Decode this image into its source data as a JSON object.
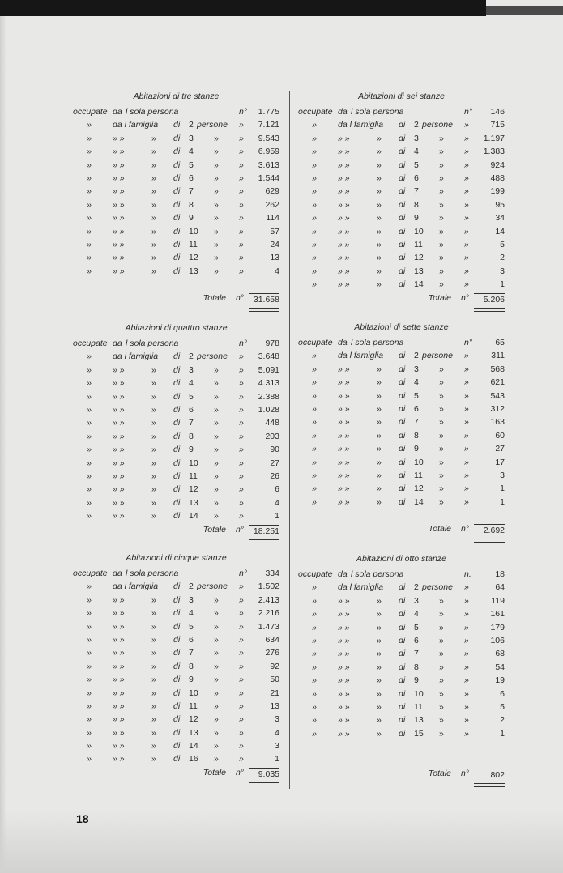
{
  "page_number": "18",
  "blocks": [
    {
      "title": "Abitazioni di tre stanze",
      "total_label": "Totale",
      "total_unit": "n°",
      "total": "31.658",
      "rows": [
        [
          "occupate",
          "da",
          "l sola persona",
          "",
          "",
          "",
          "",
          "n°",
          "1.775"
        ],
        [
          "»",
          "",
          "da l famiglia",
          "",
          "di",
          "2",
          "persone",
          "»",
          "7.121"
        ],
        [
          "»",
          "» »",
          "",
          "»",
          "di",
          "3",
          "»",
          "»",
          "9.543"
        ],
        [
          "»",
          "» »",
          "",
          "»",
          "di",
          "4",
          "»",
          "»",
          "6.959"
        ],
        [
          "»",
          "» »",
          "",
          "»",
          "di",
          "5",
          "»",
          "»",
          "3.613"
        ],
        [
          "»",
          "» »",
          "",
          "»",
          "di",
          "6",
          "»",
          "»",
          "1.544"
        ],
        [
          "»",
          "» »",
          "",
          "»",
          "di",
          "7",
          "»",
          "»",
          "629"
        ],
        [
          "»",
          "» »",
          "",
          "»",
          "di",
          "8",
          "»",
          "»",
          "262"
        ],
        [
          "»",
          "» »",
          "",
          "»",
          "di",
          "9",
          "»",
          "»",
          "114"
        ],
        [
          "»",
          "» »",
          "",
          "»",
          "di",
          "10",
          "»",
          "»",
          "57"
        ],
        [
          "»",
          "» »",
          "",
          "»",
          "di",
          "11",
          "»",
          "»",
          "24"
        ],
        [
          "»",
          "» »",
          "",
          "»",
          "di",
          "12",
          "»",
          "»",
          "13"
        ],
        [
          "»",
          "» »",
          "",
          "»",
          "di",
          "13",
          "»",
          "»",
          "4"
        ]
      ]
    },
    {
      "title": "Abitazioni di sei stanze",
      "total_label": "Totale",
      "total_unit": "n°",
      "total": "5.206",
      "rows": [
        [
          "occupate",
          "da",
          "l sola persona",
          "",
          "",
          "",
          "",
          "n°",
          "146"
        ],
        [
          "»",
          "",
          "da l famiglia",
          "",
          "di",
          "2",
          "persone",
          "»",
          "715"
        ],
        [
          "»",
          "» »",
          "",
          "»",
          "di",
          "3",
          "»",
          "»",
          "1.197"
        ],
        [
          "»",
          "» »",
          "",
          "»",
          "di",
          "4",
          "»",
          "»",
          "1.383"
        ],
        [
          "»",
          "» »",
          "",
          "»",
          "di",
          "5",
          "»",
          "»",
          "924"
        ],
        [
          "»",
          "» »",
          "",
          "»",
          "di",
          "6",
          "»",
          "»",
          "488"
        ],
        [
          "»",
          "» »",
          "",
          "»",
          "di",
          "7",
          "»",
          "»",
          "199"
        ],
        [
          "»",
          "» »",
          "",
          "»",
          "di",
          "8",
          "»",
          "»",
          "95"
        ],
        [
          "»",
          "» »",
          "",
          "»",
          "di",
          "9",
          "»",
          "»",
          "34"
        ],
        [
          "»",
          "» »",
          "",
          "»",
          "di",
          "10",
          "»",
          "»",
          "14"
        ],
        [
          "»",
          "» »",
          "",
          "»",
          "di",
          "11",
          "»",
          "»",
          "5"
        ],
        [
          "»",
          "» »",
          "",
          "»",
          "di",
          "12",
          "»",
          "»",
          "2"
        ],
        [
          "»",
          "» »",
          "",
          "»",
          "di",
          "13",
          "»",
          "»",
          "3"
        ],
        [
          "»",
          "» »",
          "",
          "»",
          "di",
          "14",
          "»",
          "»",
          "1"
        ]
      ]
    },
    {
      "title": "Abitazioni di quattro stanze",
      "total_label": "Totale",
      "total_unit": "n°",
      "total": "18.251",
      "rows": [
        [
          "occupate",
          "da",
          "l sola persona",
          "",
          "",
          "",
          "",
          "n°",
          "978"
        ],
        [
          "»",
          "",
          "da l famiglia",
          "",
          "di",
          "2",
          "persone",
          "»",
          "3.648"
        ],
        [
          "»",
          "» »",
          "",
          "»",
          "di",
          "3",
          "»",
          "»",
          "5.091"
        ],
        [
          "»",
          "» »",
          "",
          "»",
          "di",
          "4",
          "»",
          "»",
          "4.313"
        ],
        [
          "»",
          "» »",
          "",
          "»",
          "di",
          "5",
          "»",
          "»",
          "2.388"
        ],
        [
          "»",
          "» »",
          "",
          "»",
          "di",
          "6",
          "»",
          "»",
          "1.028"
        ],
        [
          "»",
          "» »",
          "",
          "»",
          "di",
          "7",
          "»",
          "»",
          "448"
        ],
        [
          "»",
          "» »",
          "",
          "»",
          "di",
          "8",
          "»",
          "»",
          "203"
        ],
        [
          "»",
          "» »",
          "",
          "»",
          "di",
          "9",
          "»",
          "»",
          "90"
        ],
        [
          "»",
          "» »",
          "",
          "»",
          "di",
          "10",
          "»",
          "»",
          "27"
        ],
        [
          "»",
          "» »",
          "",
          "»",
          "di",
          "11",
          "»",
          "»",
          "26"
        ],
        [
          "»",
          "» »",
          "",
          "»",
          "di",
          "12",
          "»",
          "»",
          "6"
        ],
        [
          "»",
          "» »",
          "",
          "»",
          "di",
          "13",
          "»",
          "»",
          "4"
        ],
        [
          "»",
          "» »",
          "",
          "»",
          "di",
          "14",
          "»",
          "»",
          "1"
        ]
      ]
    },
    {
      "title": "Abitazioni di sette stanze",
      "total_label": "Totale",
      "total_unit": "n°",
      "total": "2.692",
      "rows": [
        [
          "occupate",
          "da",
          "l sola persona",
          "",
          "",
          "",
          "",
          "n°",
          "65"
        ],
        [
          "»",
          "",
          "da l famiglia",
          "",
          "di",
          "2",
          "persone",
          "»",
          "311"
        ],
        [
          "»",
          "» »",
          "",
          "»",
          "di",
          "3",
          "»",
          "»",
          "568"
        ],
        [
          "»",
          "» »",
          "",
          "»",
          "di",
          "4",
          "»",
          "»",
          "621"
        ],
        [
          "»",
          "» »",
          "",
          "»",
          "di",
          "5",
          "»",
          "»",
          "543"
        ],
        [
          "»",
          "» »",
          "",
          "»",
          "di",
          "6",
          "»",
          "»",
          "312"
        ],
        [
          "»",
          "» »",
          "",
          "»",
          "di",
          "7",
          "»",
          "»",
          "163"
        ],
        [
          "»",
          "» »",
          "",
          "»",
          "di",
          "8",
          "»",
          "»",
          "60"
        ],
        [
          "»",
          "» »",
          "",
          "»",
          "di",
          "9",
          "»",
          "»",
          "27"
        ],
        [
          "»",
          "» »",
          "",
          "»",
          "di",
          "10",
          "»",
          "»",
          "17"
        ],
        [
          "»",
          "» »",
          "",
          "»",
          "di",
          "11",
          "»",
          "»",
          "3"
        ],
        [
          "»",
          "» »",
          "",
          "»",
          "di",
          "12",
          "»",
          "»",
          "1"
        ],
        [
          "»",
          "» »",
          "",
          "»",
          "di",
          "14",
          "»",
          "»",
          "1"
        ]
      ]
    },
    {
      "title": "Abitazioni di cinque stanze",
      "total_label": "Totale",
      "total_unit": "n°",
      "total": "9.035",
      "rows": [
        [
          "occupate",
          "da",
          "l sola persona",
          "",
          "",
          "",
          "",
          "n°",
          "334"
        ],
        [
          "»",
          "",
          "da l famiglia",
          "",
          "di",
          "2",
          "persone",
          "»",
          "1.502"
        ],
        [
          "»",
          "» »",
          "",
          "»",
          "di",
          "3",
          "»",
          "»",
          "2.413"
        ],
        [
          "»",
          "» »",
          "",
          "»",
          "di",
          "4",
          "»",
          "»",
          "2.216"
        ],
        [
          "»",
          "» »",
          "",
          "»",
          "di",
          "5",
          "»",
          "»",
          "1.473"
        ],
        [
          "»",
          "» »",
          "",
          "»",
          "di",
          "6",
          "»",
          "»",
          "634"
        ],
        [
          "»",
          "» »",
          "",
          "»",
          "di",
          "7",
          "»",
          "»",
          "276"
        ],
        [
          "»",
          "» »",
          "",
          "»",
          "di",
          "8",
          "»",
          "»",
          "92"
        ],
        [
          "»",
          "» »",
          "",
          "»",
          "di",
          "9",
          "»",
          "»",
          "50"
        ],
        [
          "»",
          "» »",
          "",
          "»",
          "di",
          "10",
          "»",
          "»",
          "21"
        ],
        [
          "»",
          "» »",
          "",
          "»",
          "di",
          "11",
          "»",
          "»",
          "13"
        ],
        [
          "»",
          "» »",
          "",
          "»",
          "di",
          "12",
          "»",
          "»",
          "3"
        ],
        [
          "»",
          "» »",
          "",
          "»",
          "di",
          "13",
          "»",
          "»",
          "4"
        ],
        [
          "»",
          "» »",
          "",
          "»",
          "di",
          "14",
          "»",
          "»",
          "3"
        ],
        [
          "»",
          "» »",
          "",
          "»",
          "di",
          "16",
          "»",
          "»",
          "1"
        ]
      ]
    },
    {
      "title": "Abitazioni di otto stanze",
      "total_label": "Totale",
      "total_unit": "n°",
      "total": "802",
      "rows": [
        [
          "occupate",
          "da",
          "l sola persona",
          "",
          "",
          "",
          "",
          "n.",
          "18"
        ],
        [
          "»",
          "",
          "da l famiglia",
          "",
          "di",
          "2",
          "persone",
          "»",
          "64"
        ],
        [
          "»",
          "» »",
          "",
          "»",
          "di",
          "3",
          "»",
          "»",
          "119"
        ],
        [
          "»",
          "» »",
          "",
          "»",
          "di",
          "4",
          "»",
          "»",
          "161"
        ],
        [
          "»",
          "» »",
          "",
          "»",
          "di",
          "5",
          "»",
          "»",
          "179"
        ],
        [
          "»",
          "» »",
          "",
          "»",
          "di",
          "6",
          "»",
          "»",
          "106"
        ],
        [
          "»",
          "» »",
          "",
          "»",
          "di",
          "7",
          "»",
          "»",
          "68"
        ],
        [
          "»",
          "» »",
          "",
          "»",
          "di",
          "8",
          "»",
          "»",
          "54"
        ],
        [
          "»",
          "» »",
          "",
          "»",
          "di",
          "9",
          "»",
          "»",
          "19"
        ],
        [
          "»",
          "» »",
          "",
          "»",
          "di",
          "10",
          "»",
          "»",
          "6"
        ],
        [
          "»",
          "» »",
          "",
          "»",
          "di",
          "11",
          "»",
          "»",
          "5"
        ],
        [
          "»",
          "» »",
          "",
          "»",
          "di",
          "13",
          "»",
          "»",
          "2"
        ],
        [
          "»",
          "» »",
          "",
          "»",
          "di",
          "15",
          "»",
          "»",
          "1"
        ]
      ]
    }
  ]
}
